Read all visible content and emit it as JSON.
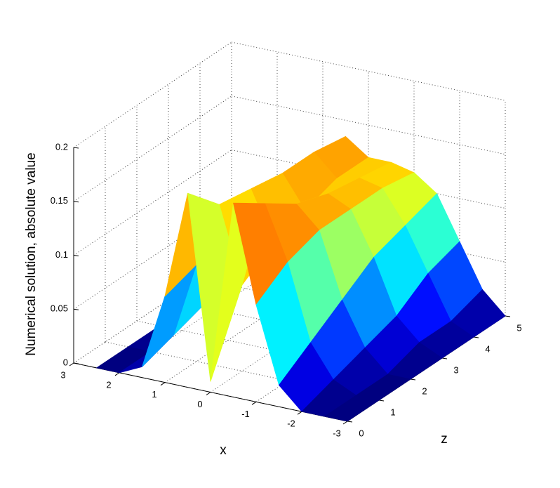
{
  "chart_data": {
    "type": "surface",
    "xlabel": "x",
    "zlabel": "z",
    "ylabel": "Numerical solution, absolute value",
    "x": [
      2.5,
      2,
      1.5,
      1,
      0.5,
      0,
      -0.5,
      -1,
      -1.5,
      -2,
      -2.5,
      -3
    ],
    "z": [
      0,
      1,
      2,
      3,
      4,
      5
    ],
    "values": [
      [
        0,
        0,
        0.01,
        0.08,
        0.18,
        0.01,
        0.18,
        0.09,
        0.02,
        0,
        0,
        0
      ],
      [
        0,
        0,
        0.02,
        0.09,
        0.15,
        0.08,
        0.16,
        0.11,
        0.04,
        0.01,
        0,
        0
      ],
      [
        0,
        0.01,
        0.03,
        0.1,
        0.145,
        0.1,
        0.14,
        0.12,
        0.06,
        0.02,
        0,
        0
      ],
      [
        0,
        0.01,
        0.04,
        0.1,
        0.14,
        0.11,
        0.13,
        0.12,
        0.08,
        0.03,
        0.01,
        0
      ],
      [
        0,
        0.01,
        0.05,
        0.11,
        0.14,
        0.12,
        0.125,
        0.12,
        0.09,
        0.05,
        0.01,
        0
      ],
      [
        0,
        0.02,
        0.06,
        0.11,
        0.135,
        0.12,
        0.12,
        0.115,
        0.1,
        0.06,
        0.02,
        0
      ]
    ],
    "colormap": "jet",
    "grid": true,
    "xlim": [
      -3,
      3
    ],
    "xticks": [
      3,
      2,
      1,
      0,
      -1,
      -2,
      -3
    ],
    "zlim": [
      0,
      5
    ],
    "zticks": [
      0,
      1,
      2,
      3,
      4,
      5
    ],
    "ylim": [
      0,
      0.2
    ],
    "yticks": [
      0,
      0.05,
      0.1,
      0.15,
      0.2
    ]
  }
}
